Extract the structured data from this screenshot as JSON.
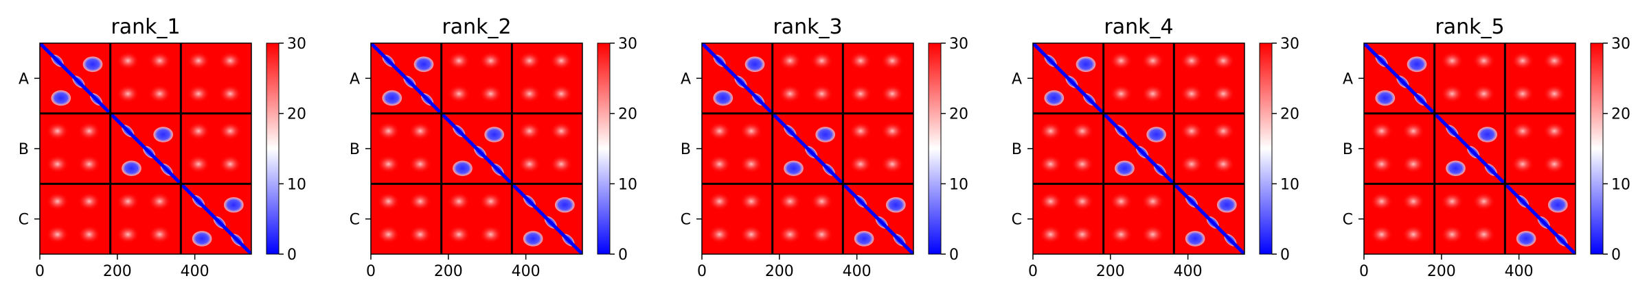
{
  "chart_data": {
    "type": "heatmap",
    "xlim": [
      0,
      546
    ],
    "ylim": [
      546,
      0
    ],
    "chain_boundaries": [
      182,
      364
    ],
    "xticks": [
      0,
      200,
      400
    ],
    "chains": [
      {
        "label": "A",
        "center": 91
      },
      {
        "label": "B",
        "center": 273
      },
      {
        "label": "C",
        "center": 455
      }
    ],
    "colorbar": {
      "range": [
        0,
        30
      ],
      "ticks": [
        0,
        10,
        20,
        30
      ],
      "colormap": "bwr",
      "colors": {
        "low": "#0000ff",
        "mid": "#ffffff",
        "high": "#ff0000"
      }
    },
    "panels": [
      {
        "title": "rank_1"
      },
      {
        "title": "rank_2"
      },
      {
        "title": "rank_3"
      },
      {
        "title": "rank_4"
      },
      {
        "title": "rank_5"
      }
    ]
  }
}
